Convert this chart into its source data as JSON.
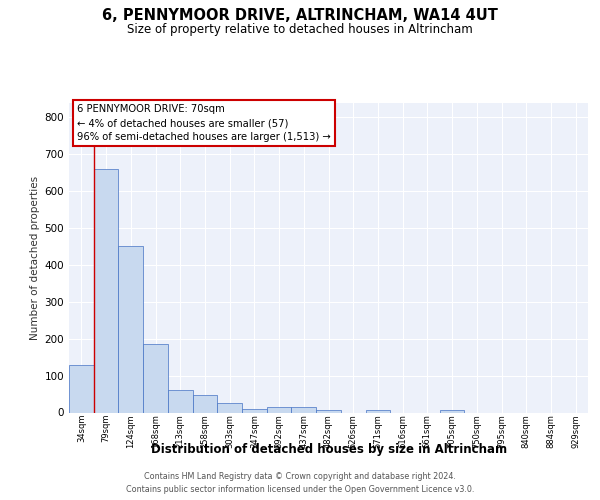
{
  "title": "6, PENNYMOOR DRIVE, ALTRINCHAM, WA14 4UT",
  "subtitle": "Size of property relative to detached houses in Altrincham",
  "xlabel": "Distribution of detached houses by size in Altrincham",
  "ylabel": "Number of detached properties",
  "footer_line1": "Contains HM Land Registry data © Crown copyright and database right 2024.",
  "footer_line2": "Contains public sector information licensed under the Open Government Licence v3.0.",
  "categories": [
    "34sqm",
    "79sqm",
    "124sqm",
    "168sqm",
    "213sqm",
    "258sqm",
    "303sqm",
    "347sqm",
    "392sqm",
    "437sqm",
    "482sqm",
    "526sqm",
    "571sqm",
    "616sqm",
    "661sqm",
    "705sqm",
    "750sqm",
    "795sqm",
    "840sqm",
    "884sqm",
    "929sqm"
  ],
  "values": [
    128,
    660,
    450,
    185,
    62,
    47,
    27,
    10,
    14,
    15,
    8,
    0,
    7,
    0,
    0,
    7,
    0,
    0,
    0,
    0,
    0
  ],
  "bar_color": "#c8d9ef",
  "bar_edge_color": "#4472c4",
  "annotation_line1": "6 PENNYMOOR DRIVE: 70sqm",
  "annotation_line2": "← 4% of detached houses are smaller (57)",
  "annotation_line3": "96% of semi-detached houses are larger (1,513) →",
  "annotation_box_color": "#ffffff",
  "annotation_box_edge_color": "#cc0000",
  "red_line_x": 0.5,
  "ylim": [
    0,
    840
  ],
  "yticks": [
    0,
    100,
    200,
    300,
    400,
    500,
    600,
    700,
    800
  ],
  "plot_bg_color": "#edf1fa",
  "title_fontsize": 10,
  "subtitle_fontsize": 9
}
